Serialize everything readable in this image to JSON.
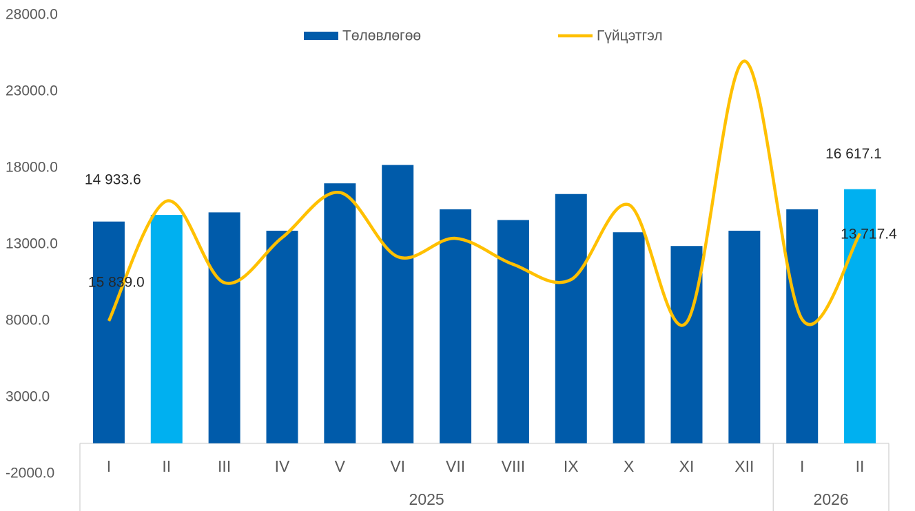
{
  "chart_data": {
    "type": "bar-line",
    "category_groups": [
      {
        "name": "2025",
        "categories": [
          "I",
          "II",
          "III",
          "IV",
          "V",
          "VI",
          "VII",
          "VIII",
          "IX",
          "X",
          "XI",
          "XII"
        ]
      },
      {
        "name": "2026",
        "categories": [
          "I",
          "II"
        ]
      }
    ],
    "series": [
      {
        "name": "Төлөвлөгөө",
        "type": "bar",
        "color": "#005baa",
        "point_colors": [
          "#005baa",
          "#00b0f0",
          "#005baa",
          "#005baa",
          "#005baa",
          "#005baa",
          "#005baa",
          "#005baa",
          "#005baa",
          "#005baa",
          "#005baa",
          "#005baa",
          "#005baa",
          "#00b0f0"
        ],
        "values": [
          14500,
          14933.6,
          15100,
          13900,
          17000,
          18200,
          15300,
          14600,
          16300,
          13800,
          12900,
          13900,
          15300,
          16617.1
        ],
        "value_labels": [
          null,
          "14 933.6",
          null,
          null,
          null,
          null,
          null,
          null,
          null,
          null,
          null,
          null,
          null,
          "16 617.1"
        ]
      },
      {
        "name": "Гүйцэтгэл",
        "type": "line",
        "color": "#ffc000",
        "values": [
          8000,
          15839.0,
          10500,
          13450,
          16400,
          12200,
          13400,
          11700,
          10700,
          15600,
          7900,
          25000,
          8100,
          13717.4
        ],
        "value_labels": [
          null,
          "15 839.0",
          null,
          null,
          null,
          null,
          null,
          null,
          null,
          null,
          null,
          null,
          null,
          "13 717.4"
        ]
      }
    ],
    "ylim": [
      -2000,
      28000
    ],
    "yticks": [
      {
        "value": -2000,
        "label": "-2000.0"
      },
      {
        "value": 3000,
        "label": "3000.0"
      },
      {
        "value": 8000,
        "label": "8000.0"
      },
      {
        "value": 13000,
        "label": "13000.0"
      },
      {
        "value": 18000,
        "label": "18000.0"
      },
      {
        "value": 23000,
        "label": "23000.0"
      },
      {
        "value": 28000,
        "label": "28000.0"
      }
    ],
    "legend": "top"
  }
}
